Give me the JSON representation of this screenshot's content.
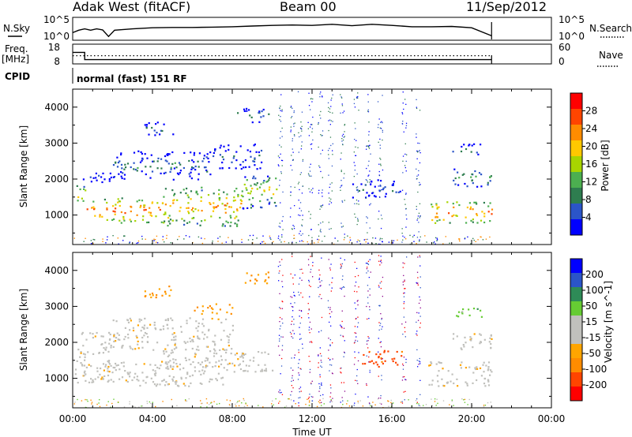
{
  "header": {
    "station": "Adak West (fitACF)",
    "beam": "Beam 00",
    "date": "11/Sep/2012"
  },
  "side_labels": {
    "nsky": "N.Sky",
    "freq_line1": "Freq.",
    "freq_line2": "[MHz]",
    "cpid": "CPID",
    "nsearch": "N.Search",
    "nave": "Nave"
  },
  "cpid_text": "normal (fast) 151 RF",
  "colors": {
    "power": [
      "#0000ff",
      "#2b55c8",
      "#2e7d4f",
      "#4caf50",
      "#a8d500",
      "#ffc800",
      "#ff8c00",
      "#ff4500",
      "#ff0000"
    ],
    "velocity": [
      "#ff0000",
      "#ff4500",
      "#ff8c00",
      "#ffa500",
      "#c0c0bc",
      "#c0c0bc",
      "#66cc33",
      "#2e8b57",
      "#2b55c8",
      "#0000ff"
    ]
  },
  "chart_data": [
    {
      "type": "line",
      "panel": "noise",
      "left_ticks": [
        "10^5",
        "10^0"
      ],
      "right_ticks": [
        "10^5",
        "10^0"
      ],
      "series": [
        {
          "name": "N.Sky",
          "x": [
            0.0,
            0.3,
            0.6,
            0.9,
            1.2,
            1.5,
            1.8,
            2.1,
            3,
            4,
            5,
            6,
            7,
            8,
            9,
            10,
            11,
            12,
            13,
            14,
            15,
            16,
            17,
            18,
            19,
            20,
            21.0
          ],
          "values": [
            1.5,
            2.2,
            2.6,
            2.2,
            2.6,
            2.3,
            0.4,
            2.2,
            2.6,
            2.9,
            3.0,
            3.0,
            3.1,
            3.2,
            3.4,
            3.6,
            3.7,
            3.6,
            3.9,
            3.5,
            3.9,
            3.6,
            3.2,
            3.2,
            3.3,
            2.9,
            0.6
          ]
        }
      ]
    },
    {
      "type": "line",
      "panel": "frequency",
      "left_ticks": [
        "18",
        "8"
      ],
      "right_ticks": [
        "60",
        "0"
      ],
      "series": [
        {
          "name": "Freq.",
          "x": [
            0.0,
            0.6,
            0.6,
            21.0
          ],
          "values": [
            14,
            14,
            9.6,
            9.6
          ]
        },
        {
          "name": "Nave",
          "x": [
            0.0,
            21.0
          ],
          "values": [
            12,
            12
          ]
        }
      ]
    },
    {
      "type": "heatmap",
      "panel": "power",
      "ylabel": "Slant Range [km]",
      "y_ticks": [
        "1000",
        "2000",
        "3000",
        "4000"
      ],
      "colorbar_label": "Power [dB]",
      "colorbar_ticks": [
        "4",
        "8",
        "12",
        "16",
        "20",
        "24",
        "28"
      ],
      "bands": [
        {
          "t0": 0.1,
          "t1": 0.6,
          "r0": 1300,
          "r1": 1900,
          "level": 0.6
        },
        {
          "t0": 0.5,
          "t1": 2.1,
          "r0": 1900,
          "r1": 2300,
          "level": 0.15
        },
        {
          "t0": 0.6,
          "t1": 1.1,
          "r0": 900,
          "r1": 1400,
          "level": 0.85
        },
        {
          "t0": 1.3,
          "t1": 4.5,
          "r0": 800,
          "r1": 1500,
          "level": 0.8
        },
        {
          "t0": 4.5,
          "t1": 8.5,
          "r0": 700,
          "r1": 1800,
          "level": 0.7
        },
        {
          "t0": 8.5,
          "t1": 10.3,
          "r0": 1200,
          "r1": 2200,
          "level": 0.55
        },
        {
          "t0": 2.0,
          "t1": 7.0,
          "r0": 2000,
          "r1": 2800,
          "level": 0.3
        },
        {
          "t0": 7.0,
          "t1": 9.5,
          "r0": 2300,
          "r1": 3000,
          "level": 0.25
        },
        {
          "t0": 3.5,
          "t1": 5.0,
          "r0": 3200,
          "r1": 3600,
          "level": 0.3
        },
        {
          "t0": 8.2,
          "t1": 9.8,
          "r0": 3600,
          "r1": 4000,
          "level": 0.3
        },
        {
          "t0": 14.0,
          "t1": 16.5,
          "r0": 1500,
          "r1": 2000,
          "level": 0.25
        },
        {
          "t0": 17.8,
          "t1": 21.0,
          "r0": 800,
          "r1": 1400,
          "level": 0.8
        },
        {
          "t0": 19.0,
          "t1": 21.0,
          "r0": 1800,
          "r1": 2300,
          "level": 0.45
        },
        {
          "t0": 19.0,
          "t1": 20.5,
          "r0": 2700,
          "r1": 3000,
          "level": 0.35
        }
      ]
    },
    {
      "type": "heatmap",
      "panel": "velocity",
      "xlabel": "Time UT",
      "ylabel": "Slant Range [km]",
      "x_ticks": [
        "00:00",
        "04:00",
        "08:00",
        "12:00",
        "16:00",
        "20:00",
        "00:00"
      ],
      "y_ticks": [
        "1000",
        "2000",
        "3000",
        "4000"
      ],
      "colorbar_label": "Velocity [m s^-1]",
      "colorbar_ticks": [
        "-200",
        "-100",
        "-50",
        "-15",
        "15",
        "50",
        "100",
        "200"
      ],
      "bands": [
        {
          "t0": 0.1,
          "t1": 2.2,
          "r0": 900,
          "r1": 2300,
          "level": 0.45
        },
        {
          "t0": 1.3,
          "t1": 7.5,
          "r0": 800,
          "r1": 1500,
          "level": 0.45
        },
        {
          "t0": 4.5,
          "t1": 10.0,
          "r0": 1200,
          "r1": 1800,
          "level": 0.45
        },
        {
          "t0": 2.0,
          "t1": 8.0,
          "r0": 1800,
          "r1": 2700,
          "level": 0.45
        },
        {
          "t0": 6.0,
          "t1": 8.0,
          "r0": 2800,
          "r1": 3100,
          "level": 0.3
        },
        {
          "t0": 3.5,
          "t1": 5.0,
          "r0": 3200,
          "r1": 3600,
          "level": 0.3
        },
        {
          "t0": 8.5,
          "t1": 9.8,
          "r0": 3600,
          "r1": 4000,
          "level": 0.3
        },
        {
          "t0": 14.5,
          "t1": 16.5,
          "r0": 1300,
          "r1": 1800,
          "level": 0.15
        },
        {
          "t0": 17.8,
          "t1": 21.0,
          "r0": 800,
          "r1": 1500,
          "level": 0.45
        },
        {
          "t0": 19.0,
          "t1": 21.0,
          "r0": 1800,
          "r1": 2300,
          "level": 0.45
        },
        {
          "t0": 19.0,
          "t1": 20.5,
          "r0": 2700,
          "r1": 3000,
          "level": 0.65
        }
      ]
    }
  ]
}
